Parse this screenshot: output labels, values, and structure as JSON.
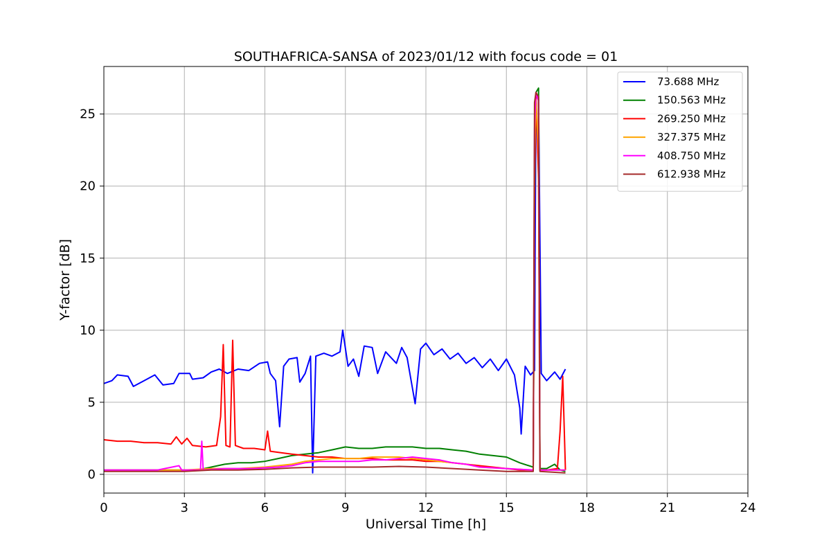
{
  "chart_data": {
    "type": "line",
    "title": "SOUTHAFRICA-SANSA of 2023/01/12 with focus code = 01",
    "xlabel": "Universal Time [h]",
    "ylabel": "Y-factor [dB]",
    "xlim": [
      0,
      24
    ],
    "ylim": [
      -1.3,
      28.3
    ],
    "xticks": [
      0,
      3,
      6,
      9,
      12,
      15,
      18,
      21,
      24
    ],
    "yticks": [
      0,
      5,
      10,
      15,
      20,
      25
    ],
    "grid": true,
    "legend_position": "top-right",
    "series": [
      {
        "name": " 73.688 MHz",
        "color": "#0000ff",
        "points": [
          [
            0.0,
            6.3
          ],
          [
            0.3,
            6.5
          ],
          [
            0.5,
            6.9
          ],
          [
            0.9,
            6.8
          ],
          [
            1.1,
            6.1
          ],
          [
            1.5,
            6.5
          ],
          [
            1.9,
            6.9
          ],
          [
            2.2,
            6.2
          ],
          [
            2.6,
            6.3
          ],
          [
            2.8,
            7.0
          ],
          [
            3.2,
            7.0
          ],
          [
            3.3,
            6.6
          ],
          [
            3.7,
            6.7
          ],
          [
            4.0,
            7.1
          ],
          [
            4.3,
            7.3
          ],
          [
            4.6,
            7.0
          ],
          [
            5.0,
            7.3
          ],
          [
            5.4,
            7.2
          ],
          [
            5.8,
            7.7
          ],
          [
            6.1,
            7.8
          ],
          [
            6.2,
            7.0
          ],
          [
            6.4,
            6.5
          ],
          [
            6.55,
            3.3
          ],
          [
            6.7,
            7.5
          ],
          [
            6.9,
            8.0
          ],
          [
            7.2,
            8.1
          ],
          [
            7.3,
            6.4
          ],
          [
            7.5,
            7.0
          ],
          [
            7.7,
            8.2
          ],
          [
            7.78,
            0.1
          ],
          [
            7.9,
            8.2
          ],
          [
            8.2,
            8.4
          ],
          [
            8.5,
            8.2
          ],
          [
            8.8,
            8.5
          ],
          [
            8.9,
            10.0
          ],
          [
            9.1,
            7.5
          ],
          [
            9.3,
            8.0
          ],
          [
            9.5,
            6.8
          ],
          [
            9.7,
            8.9
          ],
          [
            10.0,
            8.8
          ],
          [
            10.2,
            7.0
          ],
          [
            10.5,
            8.5
          ],
          [
            10.9,
            7.7
          ],
          [
            11.1,
            8.8
          ],
          [
            11.3,
            8.1
          ],
          [
            11.6,
            4.9
          ],
          [
            11.8,
            8.7
          ],
          [
            12.0,
            9.1
          ],
          [
            12.3,
            8.3
          ],
          [
            12.6,
            8.7
          ],
          [
            12.9,
            8.0
          ],
          [
            13.2,
            8.4
          ],
          [
            13.5,
            7.7
          ],
          [
            13.8,
            8.1
          ],
          [
            14.1,
            7.4
          ],
          [
            14.4,
            8.0
          ],
          [
            14.7,
            7.2
          ],
          [
            15.0,
            8.0
          ],
          [
            15.3,
            6.9
          ],
          [
            15.5,
            4.6
          ],
          [
            15.55,
            2.8
          ],
          [
            15.7,
            7.5
          ],
          [
            15.9,
            6.9
          ],
          [
            16.05,
            7.2
          ],
          [
            16.1,
            26.3
          ],
          [
            16.2,
            26.0
          ],
          [
            16.3,
            7.0
          ],
          [
            16.5,
            6.5
          ],
          [
            16.8,
            7.1
          ],
          [
            17.0,
            6.6
          ],
          [
            17.2,
            7.3
          ]
        ]
      },
      {
        "name": "150.563 MHz",
        "color": "#008000",
        "points": [
          [
            0.0,
            0.3
          ],
          [
            1.0,
            0.3
          ],
          [
            2.0,
            0.3
          ],
          [
            3.0,
            0.3
          ],
          [
            3.5,
            0.3
          ],
          [
            4.0,
            0.5
          ],
          [
            4.5,
            0.7
          ],
          [
            5.0,
            0.8
          ],
          [
            5.5,
            0.8
          ],
          [
            6.0,
            0.9
          ],
          [
            6.5,
            1.1
          ],
          [
            7.0,
            1.3
          ],
          [
            7.5,
            1.4
          ],
          [
            8.0,
            1.5
          ],
          [
            8.5,
            1.7
          ],
          [
            9.0,
            1.9
          ],
          [
            9.5,
            1.8
          ],
          [
            10.0,
            1.8
          ],
          [
            10.5,
            1.9
          ],
          [
            11.0,
            1.9
          ],
          [
            11.5,
            1.9
          ],
          [
            12.0,
            1.8
          ],
          [
            12.5,
            1.8
          ],
          [
            13.0,
            1.7
          ],
          [
            13.5,
            1.6
          ],
          [
            14.0,
            1.4
          ],
          [
            14.5,
            1.3
          ],
          [
            15.0,
            1.2
          ],
          [
            15.5,
            0.8
          ],
          [
            16.0,
            0.5
          ],
          [
            16.05,
            19.0
          ],
          [
            16.1,
            26.5
          ],
          [
            16.2,
            26.8
          ],
          [
            16.25,
            0.4
          ],
          [
            16.5,
            0.4
          ],
          [
            16.8,
            0.7
          ],
          [
            17.0,
            0.3
          ],
          [
            17.2,
            0.2
          ]
        ]
      },
      {
        "name": "269.250 MHz",
        "color": "#ff0000",
        "points": [
          [
            0.0,
            2.4
          ],
          [
            0.5,
            2.3
          ],
          [
            1.0,
            2.3
          ],
          [
            1.5,
            2.2
          ],
          [
            2.0,
            2.2
          ],
          [
            2.5,
            2.1
          ],
          [
            2.7,
            2.6
          ],
          [
            2.9,
            2.1
          ],
          [
            3.1,
            2.5
          ],
          [
            3.3,
            2.0
          ],
          [
            3.8,
            1.9
          ],
          [
            4.2,
            2.0
          ],
          [
            4.35,
            4.0
          ],
          [
            4.45,
            9.0
          ],
          [
            4.55,
            2.0
          ],
          [
            4.7,
            1.9
          ],
          [
            4.8,
            9.3
          ],
          [
            4.9,
            2.0
          ],
          [
            5.2,
            1.8
          ],
          [
            5.6,
            1.8
          ],
          [
            6.0,
            1.7
          ],
          [
            6.1,
            3.0
          ],
          [
            6.2,
            1.6
          ],
          [
            6.6,
            1.5
          ],
          [
            7.0,
            1.4
          ],
          [
            7.5,
            1.3
          ],
          [
            8.0,
            1.2
          ],
          [
            8.5,
            1.2
          ],
          [
            9.0,
            1.1
          ],
          [
            9.5,
            1.1
          ],
          [
            10.0,
            1.1
          ],
          [
            10.5,
            1.0
          ],
          [
            11.0,
            1.0
          ],
          [
            11.5,
            1.0
          ],
          [
            12.0,
            0.9
          ],
          [
            12.5,
            0.9
          ],
          [
            13.0,
            0.8
          ],
          [
            13.5,
            0.7
          ],
          [
            14.0,
            0.6
          ],
          [
            14.5,
            0.5
          ],
          [
            15.0,
            0.4
          ],
          [
            15.5,
            0.3
          ],
          [
            16.0,
            0.3
          ],
          [
            16.05,
            20.3
          ],
          [
            16.1,
            26.4
          ],
          [
            16.2,
            20.5
          ],
          [
            16.25,
            0.3
          ],
          [
            16.5,
            0.3
          ],
          [
            16.9,
            0.4
          ],
          [
            17.0,
            3.0
          ],
          [
            17.1,
            6.8
          ],
          [
            17.2,
            0.3
          ]
        ]
      },
      {
        "name": "327.375 MHz",
        "color": "#ffa500",
        "points": [
          [
            0.0,
            0.3
          ],
          [
            1.0,
            0.3
          ],
          [
            2.0,
            0.3
          ],
          [
            3.0,
            0.3
          ],
          [
            4.0,
            0.4
          ],
          [
            5.0,
            0.4
          ],
          [
            6.0,
            0.5
          ],
          [
            7.0,
            0.7
          ],
          [
            7.5,
            0.9
          ],
          [
            8.0,
            1.0
          ],
          [
            8.5,
            1.1
          ],
          [
            9.0,
            1.1
          ],
          [
            9.5,
            1.1
          ],
          [
            10.0,
            1.2
          ],
          [
            10.5,
            1.2
          ],
          [
            11.0,
            1.2
          ],
          [
            11.5,
            1.1
          ],
          [
            12.0,
            1.0
          ],
          [
            12.5,
            0.9
          ],
          [
            13.0,
            0.8
          ],
          [
            13.5,
            0.7
          ],
          [
            14.0,
            0.5
          ],
          [
            15.0,
            0.4
          ],
          [
            16.0,
            0.3
          ],
          [
            16.05,
            22.5
          ],
          [
            16.1,
            26.0
          ],
          [
            16.2,
            22.4
          ],
          [
            16.25,
            0.3
          ],
          [
            17.2,
            0.3
          ]
        ]
      },
      {
        "name": "408.750 MHz",
        "color": "#ff00ff",
        "points": [
          [
            0.0,
            0.3
          ],
          [
            1.0,
            0.3
          ],
          [
            2.0,
            0.3
          ],
          [
            2.8,
            0.6
          ],
          [
            2.9,
            0.3
          ],
          [
            3.6,
            0.3
          ],
          [
            3.65,
            2.3
          ],
          [
            3.7,
            0.3
          ],
          [
            4.5,
            0.4
          ],
          [
            5.5,
            0.4
          ],
          [
            6.5,
            0.5
          ],
          [
            7.0,
            0.6
          ],
          [
            7.5,
            0.8
          ],
          [
            8.0,
            0.9
          ],
          [
            8.5,
            0.9
          ],
          [
            9.0,
            0.9
          ],
          [
            9.5,
            0.9
          ],
          [
            10.0,
            1.0
          ],
          [
            10.5,
            1.0
          ],
          [
            11.0,
            1.1
          ],
          [
            11.5,
            1.2
          ],
          [
            12.0,
            1.1
          ],
          [
            12.5,
            1.0
          ],
          [
            13.0,
            0.8
          ],
          [
            13.5,
            0.7
          ],
          [
            14.0,
            0.5
          ],
          [
            15.0,
            0.4
          ],
          [
            16.0,
            0.3
          ],
          [
            16.05,
            24.0
          ],
          [
            16.1,
            26.5
          ],
          [
            16.2,
            25.9
          ],
          [
            16.25,
            0.3
          ],
          [
            17.2,
            0.3
          ]
        ]
      },
      {
        "name": "612.938 MHz",
        "color": "#a52a2a",
        "points": [
          [
            0.0,
            0.2
          ],
          [
            1.0,
            0.2
          ],
          [
            2.0,
            0.2
          ],
          [
            3.0,
            0.2
          ],
          [
            4.0,
            0.3
          ],
          [
            5.0,
            0.3
          ],
          [
            6.0,
            0.35
          ],
          [
            7.0,
            0.45
          ],
          [
            8.0,
            0.5
          ],
          [
            9.0,
            0.5
          ],
          [
            10.0,
            0.5
          ],
          [
            11.0,
            0.55
          ],
          [
            12.0,
            0.5
          ],
          [
            13.0,
            0.4
          ],
          [
            14.0,
            0.3
          ],
          [
            15.0,
            0.2
          ],
          [
            16.0,
            0.2
          ],
          [
            16.05,
            25.8
          ],
          [
            16.1,
            26.5
          ],
          [
            16.2,
            26.2
          ],
          [
            16.25,
            0.2
          ],
          [
            17.2,
            0.1
          ]
        ]
      }
    ]
  }
}
